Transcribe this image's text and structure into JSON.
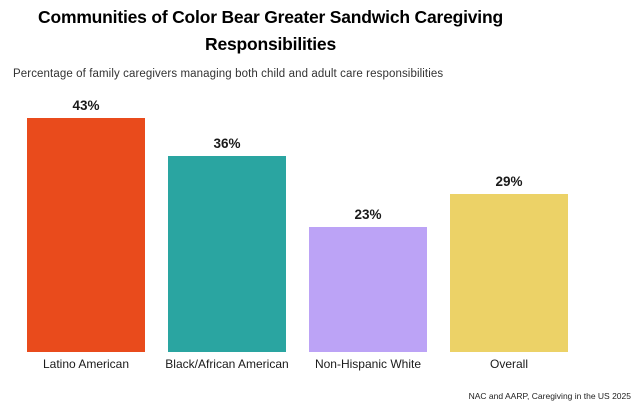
{
  "header": {
    "title_lines": [
      "Communities of Color Bear Greater Sandwich Caregiving",
      "Responsibilities"
    ],
    "subtitle": "Percentage of family caregivers managing both child and adult care responsibilities"
  },
  "source_note": "NAC and AARP, Caregiving in the US 2025",
  "chart_data": {
    "type": "bar",
    "title": "Communities of Color Bear Greater Sandwich Caregiving Responsibilities",
    "subtitle": "Percentage of family caregivers managing both child and adult care responsibilities",
    "categories": [
      "Latino American",
      "Black/African American",
      "Non-Hispanic White",
      "Overall"
    ],
    "values": [
      43,
      36,
      23,
      29
    ],
    "value_labels": [
      "43%",
      "36%",
      "23%",
      "29%"
    ],
    "bar_colors": [
      "#E94B1C",
      "#2AA5A1",
      "#BCA3F6",
      "#ECD267"
    ],
    "xlabel": "",
    "ylabel": "",
    "ylim": [
      0,
      45
    ],
    "grid": false,
    "legend_position": "none",
    "value_label_position": "above-bars",
    "source": "NAC and AARP, Caregiving in the US 2025"
  }
}
